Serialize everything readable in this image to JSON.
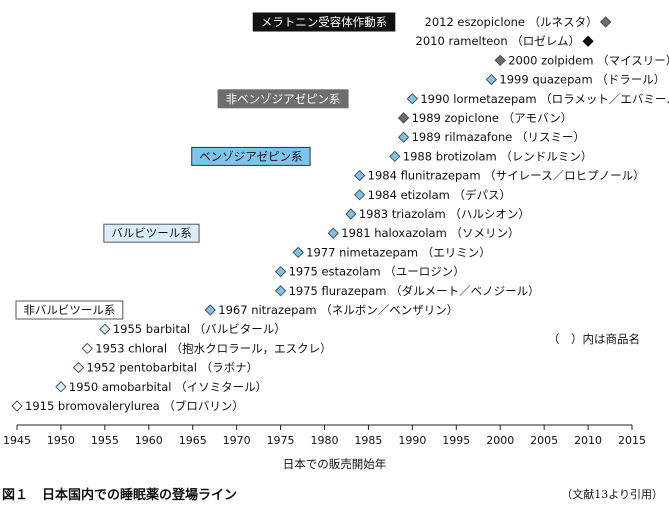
{
  "chart_data": {
    "type": "timeline",
    "xlabel": "日本での販売開始年",
    "xlim": [
      1945,
      2015
    ],
    "xticks": [
      1945,
      1950,
      1955,
      1960,
      1965,
      1970,
      1975,
      1980,
      1985,
      1990,
      1995,
      2000,
      2005,
      2010,
      2015
    ],
    "note": "（　）内は商品名",
    "categories": [
      {
        "name": "メラトニン受容体作動系",
        "color": "#111111",
        "text_color": "#ffffff",
        "border": "#111111",
        "start_year": 1972,
        "row": 0
      },
      {
        "name": "非ベンゾジアゼピン系",
        "color": "#6e6e6e",
        "text_color": "#ffffff",
        "border": "#6e6e6e",
        "start_year": 1968,
        "row": 4
      },
      {
        "name": "ベンゾジアゼピン系",
        "color": "#7ec3ea",
        "text_color": "#111111",
        "border": "#333333",
        "start_year": 1965,
        "row": 7
      },
      {
        "name": "バルビツール系",
        "color": "#daeef9",
        "text_color": "#111111",
        "border": "#555555",
        "start_year": 1955,
        "row": 11
      },
      {
        "name": "非バルビツール系",
        "color": "#ffffff",
        "text_color": "#111111",
        "border": "#555555",
        "start_year": 1945,
        "row": 15
      }
    ],
    "drugs": [
      {
        "year": 2012,
        "name": "eszopiclone",
        "brand": "（ルネスタ）",
        "category": "非ベンゾジアゼピン系",
        "label_side": "left"
      },
      {
        "year": 2010,
        "name": "ramelteon",
        "brand": "（ロゼレム）",
        "category": "メラトニン受容体作動系",
        "label_side": "left"
      },
      {
        "year": 2000,
        "name": "zolpidem",
        "brand": "（マイスリー）",
        "category": "非ベンゾジアゼピン系",
        "label_side": "right"
      },
      {
        "year": 1999,
        "name": "quazepam",
        "brand": "（ドラール）",
        "category": "ベンゾジアゼピン系",
        "label_side": "right"
      },
      {
        "year": 1990,
        "name": "lormetazepam",
        "brand": "（ロラメット／エバミール）",
        "category": "ベンゾジアゼピン系",
        "label_side": "right"
      },
      {
        "year": 1989,
        "name": "zopiclone",
        "brand": "（アモバン）",
        "category": "非ベンゾジアゼピン系",
        "label_side": "right"
      },
      {
        "year": 1989,
        "name": "rilmazafone",
        "brand": "（リスミー）",
        "category": "ベンゾジアゼピン系",
        "label_side": "right"
      },
      {
        "year": 1988,
        "name": "brotizolam",
        "brand": "（レンドルミン）",
        "category": "ベンゾジアゼピン系",
        "label_side": "right"
      },
      {
        "year": 1984,
        "name": "flunitrazepam",
        "brand": "（サイレース／ロヒプノール）",
        "category": "ベンゾジアゼピン系",
        "label_side": "right"
      },
      {
        "year": 1984,
        "name": "etizolam",
        "brand": "（デパス）",
        "category": "ベンゾジアゼピン系",
        "label_side": "right"
      },
      {
        "year": 1983,
        "name": "triazolam",
        "brand": "（ハルシオン）",
        "category": "ベンゾジアゼピン系",
        "label_side": "right"
      },
      {
        "year": 1981,
        "name": "haloxazolam",
        "brand": "（ソメリン）",
        "category": "ベンゾジアゼピン系",
        "label_side": "right"
      },
      {
        "year": 1977,
        "name": "nimetazepam",
        "brand": "（エリミン）",
        "category": "ベンゾジアゼピン系",
        "label_side": "right"
      },
      {
        "year": 1975,
        "name": "estazolam",
        "brand": "（ユーロジン）",
        "category": "ベンゾジアゼピン系",
        "label_side": "right"
      },
      {
        "year": 1975,
        "name": "flurazepam",
        "brand": "（ダルメート／ベノジール）",
        "category": "ベンゾジアゼピン系",
        "label_side": "right"
      },
      {
        "year": 1967,
        "name": "nitrazepam",
        "brand": "（ネルボン／ベンザリン）",
        "category": "ベンゾジアゼピン系",
        "label_side": "right"
      },
      {
        "year": 1955,
        "name": "barbital",
        "brand": "（バルビタール）",
        "category": "バルビツール系",
        "label_side": "right"
      },
      {
        "year": 1953,
        "name": "chloral",
        "brand": "（抱水クロラール，エスクレ）",
        "category": "非バルビツール系",
        "label_side": "right"
      },
      {
        "year": 1952,
        "name": "pentobarbital",
        "brand": "（ラボナ）",
        "category": "バルビツール系",
        "label_side": "right"
      },
      {
        "year": 1950,
        "name": "amobarbital",
        "brand": "（イソミタール）",
        "category": "バルビツール系",
        "label_side": "right"
      },
      {
        "year": 1915,
        "name": "bromovalerylurea",
        "brand": "（ブロバリン）",
        "category": "非バルビツール系",
        "label_side": "right",
        "plot_year": 1945
      }
    ]
  },
  "caption": {
    "figure": "図１",
    "title": "日本国内での睡眠薬の登場ライン"
  },
  "source": "（文献13より引用）"
}
